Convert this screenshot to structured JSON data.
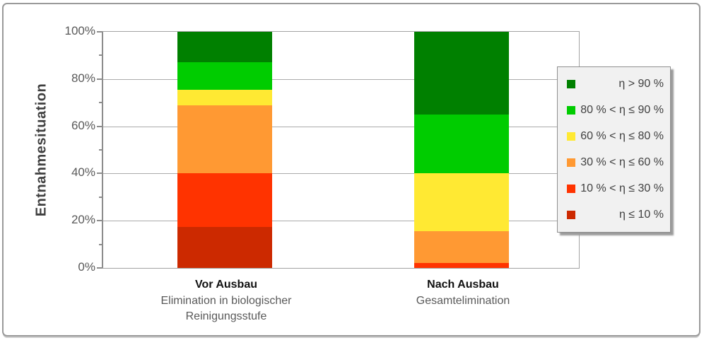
{
  "chart_data": {
    "type": "bar",
    "subtype": "stacked-percent-columns",
    "title": "",
    "ylabel": "Entnahmesituation",
    "xlabel": "",
    "ylim": [
      0,
      100
    ],
    "yticks": [
      0,
      20,
      40,
      60,
      80,
      100
    ],
    "ytick_labels": [
      "0%",
      "20%",
      "40%",
      "60%",
      "80%",
      "100%"
    ],
    "yticks_minor": [
      10,
      30,
      50,
      70,
      90
    ],
    "grid": "horizontal-major",
    "legend_position": "right",
    "legend_order": "top-is-highest-class",
    "categories": [
      {
        "label": "Vor Ausbau",
        "sublabel_lines": [
          "Elimination in biologischer",
          "Reinigungsstufe"
        ]
      },
      {
        "label": "Nach Ausbau",
        "sublabel_lines": [
          "Gesamtelimination"
        ]
      }
    ],
    "series": [
      {
        "name": "η ≤ 10 %",
        "color": "#cc2900",
        "values": [
          17.5,
          0
        ]
      },
      {
        "name": "10 % < η ≤ 30 %",
        "color": "#ff3300",
        "values": [
          22.5,
          2
        ]
      },
      {
        "name": "30 % < η ≤ 60 %",
        "color": "#ff9933",
        "values": [
          29,
          13.5
        ]
      },
      {
        "name": "60 % < η ≤ 80 %",
        "color": "#ffe933",
        "values": [
          6.5,
          24.5
        ]
      },
      {
        "name": "80 % < η ≤ 90 %",
        "color": "#00cc00",
        "values": [
          11.5,
          25
        ]
      },
      {
        "name": "η > 90 %",
        "color": "#008000",
        "values": [
          13,
          35
        ]
      }
    ]
  },
  "colors": {
    "grid": "#ababab",
    "plot_border": "#a3a3a3",
    "tick_text": "#595959",
    "axis_title_text": "#3f3f3f",
    "category_text": "#111111",
    "sublabel_text": "#595959",
    "legend_bg": "#f1f1f1",
    "legend_border": "#8f8f8f",
    "frame_border": "#9a9a9a"
  }
}
